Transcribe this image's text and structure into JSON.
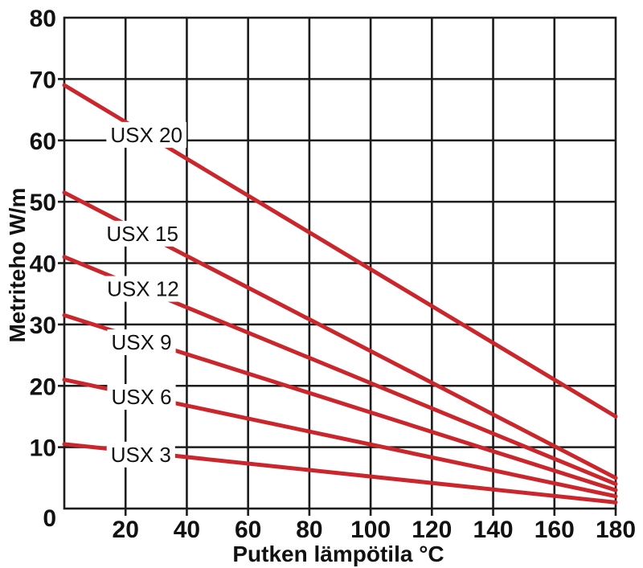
{
  "chart_data": {
    "type": "line",
    "title": "",
    "xlabel": "Putken lämpötila °C",
    "ylabel": "Metriteho W/m",
    "xlim": [
      0,
      180
    ],
    "ylim": [
      0,
      80
    ],
    "xticks": [
      20,
      40,
      60,
      80,
      100,
      120,
      140,
      160,
      180
    ],
    "yticks": [
      0,
      10,
      20,
      30,
      40,
      50,
      60,
      70,
      80
    ],
    "grid": true,
    "legend_position": "inline-labels-on-lines",
    "line_color": "#cb262c",
    "grid_color": "#1c1c1c",
    "text_color": "#111111",
    "series": [
      {
        "name": "USX 20",
        "x": [
          0,
          180
        ],
        "values": [
          69,
          15
        ],
        "label_x": 26.8,
        "label_y": 60.9
      },
      {
        "name": "USX 15",
        "x": [
          0,
          180
        ],
        "values": [
          51.5,
          5
        ],
        "label_x": 25.5,
        "label_y": 44.8
      },
      {
        "name": "USX 12",
        "x": [
          0,
          180
        ],
        "values": [
          41,
          4
        ],
        "label_x": 25.7,
        "label_y": 35.8
      },
      {
        "name": "USX 9",
        "x": [
          0,
          180
        ],
        "values": [
          31.5,
          3
        ],
        "label_x": 25.2,
        "label_y": 27.1
      },
      {
        "name": "USX 6",
        "x": [
          0,
          180
        ],
        "values": [
          21,
          2
        ],
        "label_x": 25.2,
        "label_y": 18.2
      },
      {
        "name": "USX 3",
        "x": [
          0,
          180
        ],
        "values": [
          10.5,
          1
        ],
        "label_x": 25.0,
        "label_y": 8.8
      }
    ]
  }
}
